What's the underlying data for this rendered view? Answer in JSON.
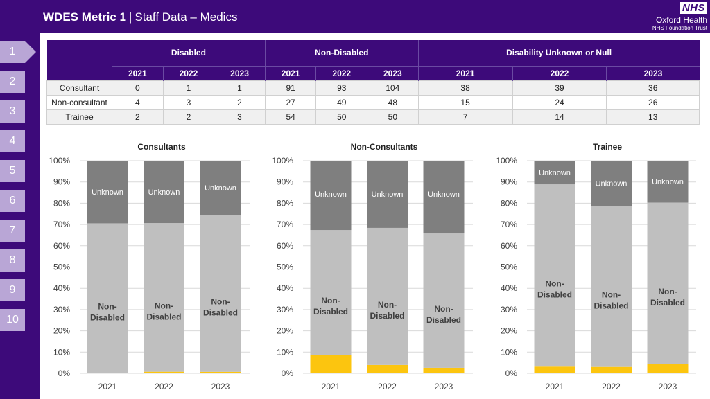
{
  "header": {
    "title_bold": "WDES Metric 1",
    "separator": "|",
    "title_rest": "Staff Data – Medics",
    "nhs_logo": "NHS",
    "org_name": "Oxford Health",
    "org_sub": "NHS Foundation Trust"
  },
  "sidebar": {
    "items": [
      "1",
      "2",
      "3",
      "4",
      "5",
      "6",
      "7",
      "8",
      "9",
      "10"
    ],
    "active": "1"
  },
  "table": {
    "groups": [
      "Disabled",
      "Non-Disabled",
      "Disability Unknown or Null"
    ],
    "years": [
      "2021",
      "2022",
      "2023"
    ],
    "rows": [
      {
        "label": "Consultant",
        "values": [
          "0",
          "1",
          "1",
          "91",
          "93",
          "104",
          "38",
          "39",
          "36"
        ]
      },
      {
        "label": "Non-consultant",
        "values": [
          "4",
          "3",
          "2",
          "27",
          "49",
          "48",
          "15",
          "24",
          "26"
        ]
      },
      {
        "label": "Trainee",
        "values": [
          "2",
          "2",
          "3",
          "54",
          "50",
          "50",
          "7",
          "14",
          "13"
        ]
      }
    ]
  },
  "colors": {
    "disabled": "#fcc50f",
    "non_disabled": "#bfbfbf",
    "unknown": "#7f7f7f",
    "brand": "#3d0a7a"
  },
  "chart_data": [
    {
      "type": "bar",
      "stacked": true,
      "normalized": true,
      "title": "Consultants",
      "categories": [
        "2021",
        "2022",
        "2023"
      ],
      "series": [
        {
          "name": "Disabled",
          "label": "Disabled",
          "values": [
            0,
            1,
            1
          ]
        },
        {
          "name": "Non-Disabled",
          "label": "Non-Disabled",
          "values": [
            91,
            93,
            104
          ]
        },
        {
          "name": "Unknown",
          "label": "Unknown",
          "values": [
            38,
            39,
            36
          ]
        }
      ],
      "yticks": [
        "0%",
        "10%",
        "20%",
        "30%",
        "40%",
        "50%",
        "60%",
        "70%",
        "80%",
        "90%",
        "100%"
      ],
      "ylim": [
        0,
        100
      ]
    },
    {
      "type": "bar",
      "stacked": true,
      "normalized": true,
      "title": "Non-Consultants",
      "categories": [
        "2021",
        "2022",
        "2023"
      ],
      "series": [
        {
          "name": "Disabled",
          "label": "Disabled",
          "values": [
            4,
            3,
            2
          ]
        },
        {
          "name": "Non-Disabled",
          "label": "Non-Disabled",
          "values": [
            27,
            49,
            48
          ]
        },
        {
          "name": "Unknown",
          "label": "Unknown",
          "values": [
            15,
            24,
            26
          ]
        }
      ],
      "yticks": [
        "0%",
        "10%",
        "20%",
        "30%",
        "40%",
        "50%",
        "60%",
        "70%",
        "80%",
        "90%",
        "100%"
      ],
      "ylim": [
        0,
        100
      ]
    },
    {
      "type": "bar",
      "stacked": true,
      "normalized": true,
      "title": "Trainee",
      "categories": [
        "2021",
        "2022",
        "2023"
      ],
      "series": [
        {
          "name": "Disabled",
          "label": "Disabled",
          "values": [
            2,
            2,
            3
          ]
        },
        {
          "name": "Non-Disabled",
          "label": "Non-Disabled",
          "values": [
            54,
            50,
            50
          ]
        },
        {
          "name": "Unknown",
          "label": "Unknown",
          "values": [
            7,
            14,
            13
          ]
        }
      ],
      "yticks": [
        "0%",
        "10%",
        "20%",
        "30%",
        "40%",
        "50%",
        "60%",
        "70%",
        "80%",
        "90%",
        "100%"
      ],
      "ylim": [
        0,
        100
      ]
    }
  ]
}
